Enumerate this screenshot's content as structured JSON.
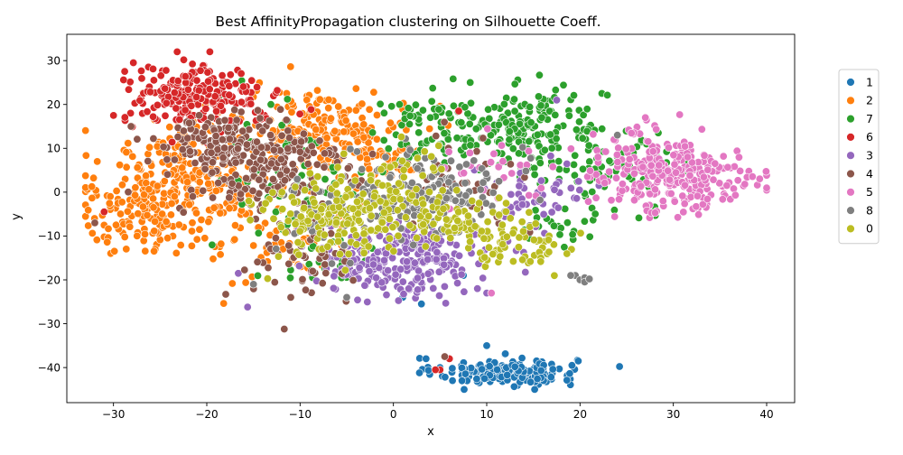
{
  "chart_data": {
    "type": "scatter",
    "title": "Best AffinityPropagation clustering on Silhouette Coeff.",
    "xlabel": "x",
    "ylabel": "y",
    "xlim": [
      -35,
      43
    ],
    "ylim": [
      -48,
      36
    ],
    "xticks": [
      -30,
      -20,
      -10,
      0,
      10,
      20,
      30,
      40
    ],
    "yticks": [
      -40,
      -30,
      -20,
      -10,
      0,
      10,
      20,
      30
    ],
    "grid": false,
    "legend_position": "right",
    "series": [
      {
        "name": "1",
        "color": "#1f77b4",
        "clusters": [
          {
            "cx": 12,
            "cy": -41,
            "sx": 3.8,
            "sy": 1.6,
            "n": 165
          }
        ],
        "extra": [
          [
            3.5,
            -38
          ],
          [
            3,
            -25.5
          ],
          [
            1,
            -24
          ],
          [
            7.5,
            -19
          ],
          [
            10,
            -35
          ],
          [
            5,
            -40
          ]
        ]
      },
      {
        "name": "2",
        "color": "#ff7f0e",
        "clusters": [
          {
            "cx": -22,
            "cy": 3,
            "sx": 4.5,
            "sy": 7,
            "n": 260
          },
          {
            "cx": -8,
            "cy": 15,
            "sx": 4.5,
            "sy": 4.5,
            "n": 170
          },
          {
            "cx": -28,
            "cy": -6,
            "sx": 3,
            "sy": 4,
            "n": 80
          },
          {
            "cx": -12,
            "cy": -8,
            "sx": 4,
            "sy": 7,
            "n": 70
          },
          {
            "cx": -2,
            "cy": 10,
            "sx": 3.5,
            "sy": 5,
            "n": 60
          }
        ],
        "extra": []
      },
      {
        "name": "7",
        "color": "#2ca02c",
        "clusters": [
          {
            "cx": 14,
            "cy": 14,
            "sx": 4.5,
            "sy": 4.5,
            "n": 190
          },
          {
            "cx": 4,
            "cy": 14,
            "sx": 3.5,
            "sy": 5,
            "n": 70
          },
          {
            "cx": 24,
            "cy": 5,
            "sx": 4,
            "sy": 4,
            "n": 70
          },
          {
            "cx": -12,
            "cy": 5,
            "sx": 3,
            "sy": 10,
            "n": 55
          },
          {
            "cx": -6,
            "cy": -10,
            "sx": 2.5,
            "sy": 6,
            "n": 30
          },
          {
            "cx": 18,
            "cy": -8,
            "sx": 2.5,
            "sy": 3,
            "n": 20
          }
        ],
        "extra": []
      },
      {
        "name": "6",
        "color": "#d62728",
        "clusters": [
          {
            "cx": -22,
            "cy": 22,
            "sx": 3.5,
            "sy": 3.5,
            "n": 180
          },
          {
            "cx": -15,
            "cy": 20,
            "sx": 2.5,
            "sy": 3,
            "n": 25
          }
        ],
        "extra": [
          [
            -30,
            17.5
          ],
          [
            -31,
            -4.5
          ],
          [
            7,
            18.5
          ],
          [
            5,
            -40.5
          ],
          [
            4.5,
            -40.5
          ],
          [
            6,
            -38
          ]
        ]
      },
      {
        "name": "3",
        "color": "#9467bd",
        "clusters": [
          {
            "cx": 2,
            "cy": -15,
            "sx": 4.5,
            "sy": 4,
            "n": 220
          },
          {
            "cx": 15,
            "cy": 0,
            "sx": 3,
            "sy": 3.5,
            "n": 45
          },
          {
            "cx": -3,
            "cy": -18,
            "sx": 2.5,
            "sy": 3,
            "n": 40
          }
        ],
        "extra": [
          [
            10,
            -23
          ],
          [
            9,
            -22
          ],
          [
            17.5,
            21
          ]
        ]
      },
      {
        "name": "4",
        "color": "#8c564b",
        "clusters": [
          {
            "cx": -14,
            "cy": 6,
            "sx": 4.5,
            "sy": 6,
            "n": 210
          },
          {
            "cx": -20,
            "cy": 11,
            "sx": 3,
            "sy": 3,
            "n": 80
          },
          {
            "cx": -10,
            "cy": -15,
            "sx": 3.5,
            "sy": 5,
            "n": 50
          },
          {
            "cx": 6,
            "cy": 2,
            "sx": 4,
            "sy": 5,
            "n": 40
          }
        ],
        "extra": [
          [
            -32,
            -7
          ],
          [
            -11,
            -24
          ],
          [
            5.5,
            -37.5
          ]
        ]
      },
      {
        "name": "5",
        "color": "#e377c2",
        "clusters": [
          {
            "cx": 31,
            "cy": 3,
            "sx": 4,
            "sy": 4,
            "n": 230
          },
          {
            "cx": 25,
            "cy": 8,
            "sx": 3,
            "sy": 3.5,
            "n": 50
          },
          {
            "cx": 10,
            "cy": 6,
            "sx": 3,
            "sy": 4,
            "n": 25
          }
        ],
        "extra": [
          [
            10.5,
            -23
          ],
          [
            27,
            17
          ]
        ]
      },
      {
        "name": "8",
        "color": "#7f7f7f",
        "clusters": [
          {
            "cx": 4,
            "cy": 0,
            "sx": 4.5,
            "sy": 5,
            "n": 150
          },
          {
            "cx": -6,
            "cy": -5,
            "sx": 3,
            "sy": 5,
            "n": 40
          }
        ],
        "extra": [
          [
            19.5,
            -19
          ],
          [
            20,
            -20
          ],
          [
            20.5,
            -19.5
          ],
          [
            19,
            -19
          ],
          [
            20.5,
            -20.5
          ],
          [
            21,
            -19.8
          ],
          [
            -15,
            -21
          ],
          [
            -5,
            -24
          ],
          [
            24,
            13
          ]
        ]
      },
      {
        "name": "0",
        "color": "#bcbd22",
        "clusters": [
          {
            "cx": -6,
            "cy": -5,
            "sx": 4.5,
            "sy": 5,
            "n": 180
          },
          {
            "cx": 7,
            "cy": -6,
            "sx": 3.5,
            "sy": 2.5,
            "n": 70
          },
          {
            "cx": 13,
            "cy": -12,
            "sx": 3,
            "sy": 3,
            "n": 60
          },
          {
            "cx": 0,
            "cy": 4,
            "sx": 3,
            "sy": 4,
            "n": 30
          }
        ],
        "extra": []
      }
    ]
  }
}
